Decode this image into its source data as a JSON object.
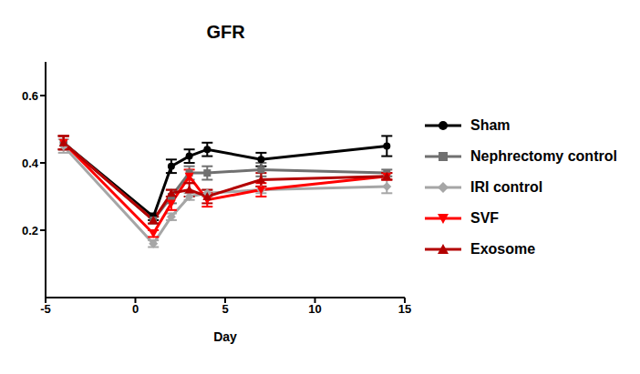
{
  "chart_data": {
    "type": "line",
    "title": "GFR",
    "x_label": "Day",
    "x": [
      -4,
      1,
      2,
      3,
      4,
      7,
      14
    ],
    "xlim": [
      -5,
      15
    ],
    "xticks": [
      -5,
      0,
      5,
      10,
      15
    ],
    "ylim": [
      0,
      0.7
    ],
    "yticks": [
      0.2,
      0.4,
      0.6
    ],
    "grid": false,
    "legend": "right",
    "series": [
      {
        "name": "Sham",
        "color": "#000000",
        "marker": "circle",
        "values": [
          0.46,
          0.24,
          0.39,
          0.42,
          0.44,
          0.41,
          0.45
        ],
        "error": [
          0.02,
          0.01,
          0.02,
          0.02,
          0.02,
          0.02,
          0.03
        ]
      },
      {
        "name": "Nephrectomy control",
        "color": "#707070",
        "marker": "square",
        "values": [
          0.46,
          0.23,
          0.3,
          0.37,
          0.37,
          0.38,
          0.37
        ],
        "error": [
          0.02,
          0.01,
          0.02,
          0.02,
          0.02,
          0.02,
          0.01
        ]
      },
      {
        "name": "IRI control",
        "color": "#a6a6a6",
        "marker": "diamond",
        "values": [
          0.45,
          0.16,
          0.24,
          0.3,
          0.31,
          0.32,
          0.33
        ],
        "error": [
          0.02,
          0.01,
          0.01,
          0.01,
          0.01,
          0.01,
          0.02
        ]
      },
      {
        "name": "SVF",
        "color": "#ff0000",
        "marker": "triangle-down",
        "values": [
          0.46,
          0.19,
          0.28,
          0.36,
          0.29,
          0.32,
          0.36
        ],
        "error": [
          0.02,
          0.01,
          0.02,
          0.02,
          0.02,
          0.02,
          0.01
        ]
      },
      {
        "name": "Exosome",
        "color": "#b30000",
        "marker": "triangle-up",
        "values": [
          0.46,
          0.23,
          0.31,
          0.32,
          0.3,
          0.35,
          0.36
        ],
        "error": [
          0.02,
          0.01,
          0.01,
          0.02,
          0.02,
          0.02,
          0.01
        ]
      }
    ]
  }
}
